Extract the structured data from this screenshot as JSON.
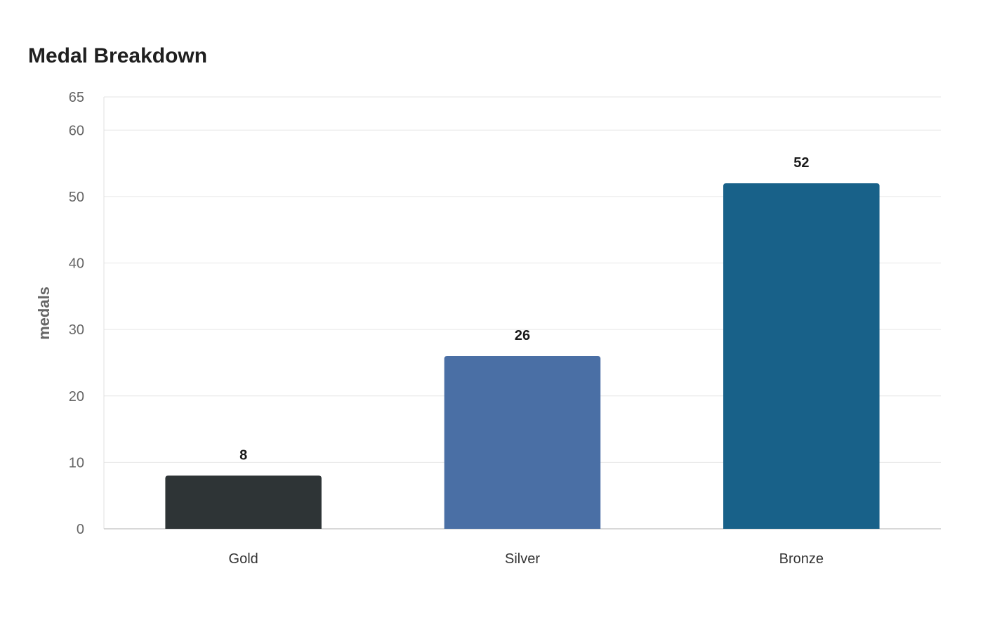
{
  "chart_data": {
    "type": "bar",
    "title": "Medal Breakdown",
    "xlabel": "",
    "ylabel": "medals",
    "categories": [
      "Gold",
      "Silver",
      "Bronze"
    ],
    "values": [
      8,
      26,
      52
    ],
    "ylim": [
      0,
      65
    ],
    "yticks": [
      0,
      10,
      20,
      30,
      40,
      50,
      60,
      65
    ],
    "colors": [
      "#2e3436",
      "#4a6fa5",
      "#186189"
    ],
    "grid": true,
    "legend": "none",
    "data_labels": true
  }
}
